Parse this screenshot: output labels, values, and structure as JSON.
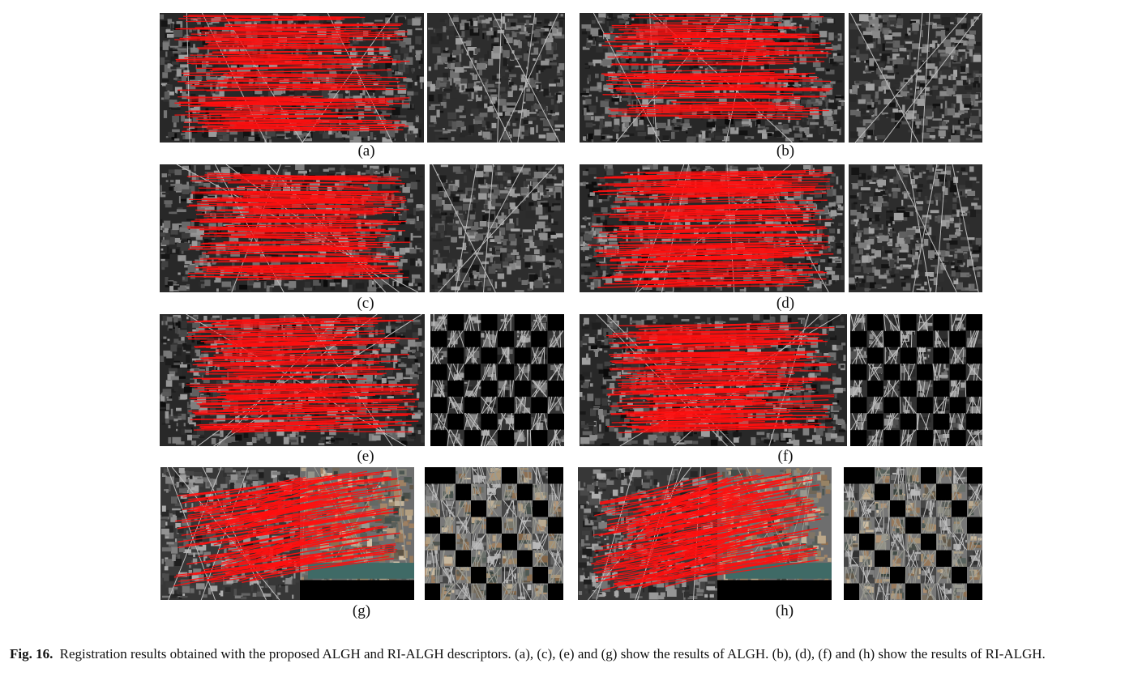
{
  "figure": {
    "panels": [
      {
        "label": "(a)",
        "method": "ALGH",
        "scene": "gray"
      },
      {
        "label": "(b)",
        "method": "RI-ALGH",
        "scene": "gray"
      },
      {
        "label": "(c)",
        "method": "ALGH",
        "scene": "gray"
      },
      {
        "label": "(d)",
        "method": "RI-ALGH",
        "scene": "gray"
      },
      {
        "label": "(e)",
        "method": "ALGH",
        "scene": "gray"
      },
      {
        "label": "(f)",
        "method": "RI-ALGH",
        "scene": "gray"
      },
      {
        "label": "(g)",
        "method": "ALGH",
        "scene": "color"
      },
      {
        "label": "(h)",
        "method": "RI-ALGH",
        "scene": "color"
      }
    ],
    "match_line_color": "#ff1010"
  },
  "caption": {
    "lead": "Fig. 16.",
    "text": "Registration results obtained with the proposed ALGH and RI-ALGH descriptors. (a), (c), (e) and (g) show the results of ALGH. (b), (d), (f) and (h) show the results of RI-ALGH."
  }
}
